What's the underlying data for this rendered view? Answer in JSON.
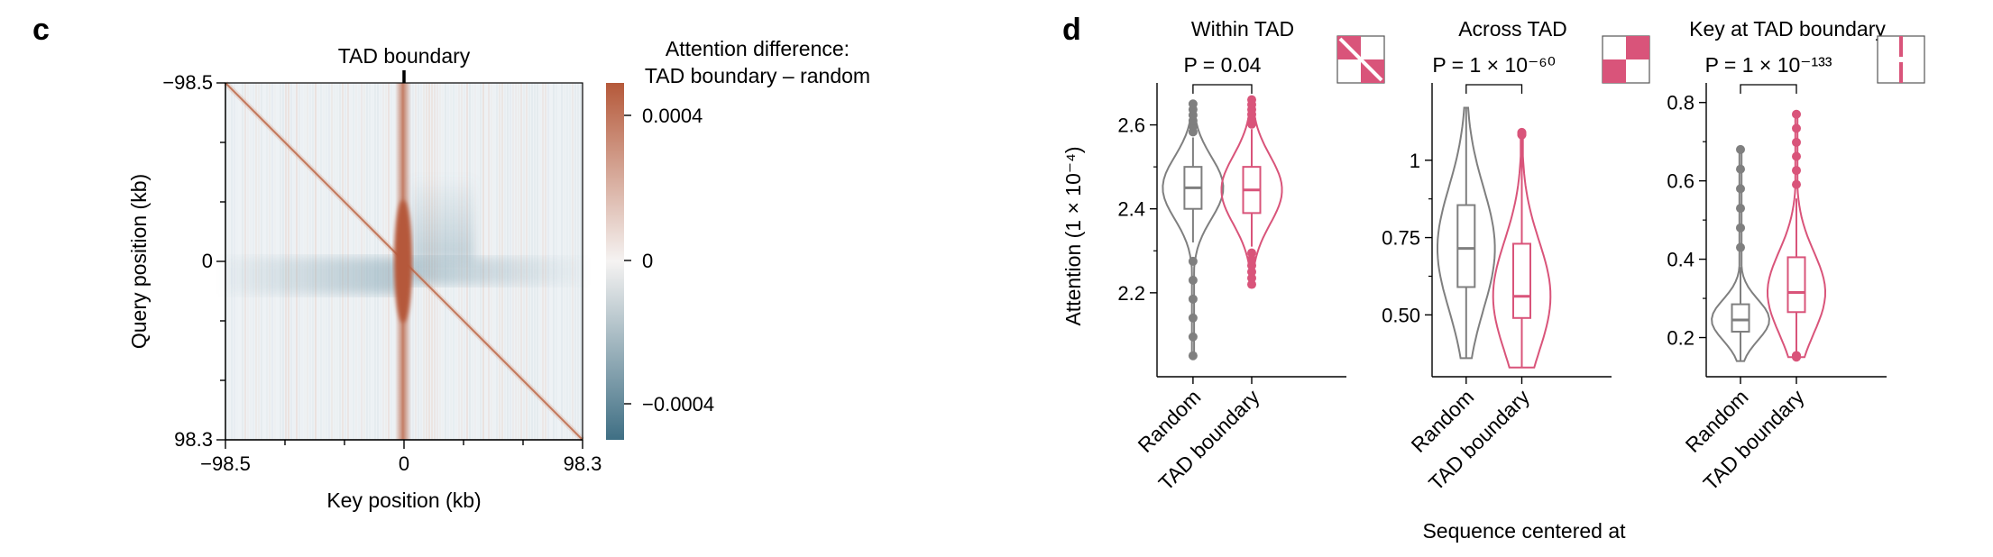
{
  "panel_c": {
    "letter": "c",
    "marker_label": "TAD boundary",
    "colorbar_title_line1": "Attention difference:",
    "colorbar_title_line2": "TAD boundary – random",
    "colorbar_ticks": [
      "0.0004",
      "0",
      "−0.0004"
    ],
    "colors": {
      "positive": "#b5593a",
      "neutral": "#f5f3f2",
      "negative": "#3f6f84"
    }
  },
  "panel_d": {
    "letter": "d",
    "xlabel": "Sequence centered at",
    "ylabel": "Attention (1 × 10⁻⁴)",
    "colors": {
      "random": "#7f7f7f",
      "tad": "#d9547a"
    }
  },
  "chart_data": [
    {
      "type": "heatmap",
      "xlabel": "Key position (kb)",
      "ylabel": "Query position (kb)",
      "x_tick_labels": [
        "−98.5",
        "0",
        "98.3"
      ],
      "y_tick_labels": [
        "−98.5",
        "0",
        "98.3"
      ],
      "xlim": [
        -98.5,
        98.3
      ],
      "ylim": [
        -98.5,
        98.3
      ],
      "colorbar_range": [
        -0.0006,
        0.0006
      ],
      "annotations": [
        "TAD boundary"
      ]
    },
    {
      "type": "violin",
      "title": "Within TAD",
      "p_value": "P = 0.04",
      "categories": [
        "Random",
        "TAD boundary"
      ],
      "ylim": [
        2.0,
        2.7
      ],
      "yticks": [
        2.2,
        2.4,
        2.6
      ],
      "y_tick_labels": [
        "2.2",
        "2.4",
        "2.6"
      ],
      "series": [
        {
          "name": "Random",
          "q1": 2.4,
          "median": 2.45,
          "q3": 2.5,
          "whisker_low": 2.32,
          "whisker_high": 2.57,
          "min": 2.05,
          "max": 2.65
        },
        {
          "name": "TAD boundary",
          "q1": 2.39,
          "median": 2.445,
          "q3": 2.5,
          "whisker_low": 2.31,
          "whisker_high": 2.59,
          "min": 2.22,
          "max": 2.66
        }
      ]
    },
    {
      "type": "violin",
      "title": "Across TAD",
      "p_value": "P = 1 × 10⁻⁶⁰",
      "categories": [
        "Random",
        "TAD boundary"
      ],
      "ylim": [
        0.3,
        1.25
      ],
      "yticks": [
        0.5,
        0.75,
        1.0
      ],
      "y_tick_labels": [
        "0.50",
        "0.75",
        "1"
      ],
      "series": [
        {
          "name": "Random",
          "q1": 0.59,
          "median": 0.715,
          "q3": 0.855,
          "whisker_low": 0.36,
          "whisker_high": 1.17,
          "min": 0.36,
          "max": 1.17
        },
        {
          "name": "TAD boundary",
          "q1": 0.49,
          "median": 0.56,
          "q3": 0.73,
          "whisker_low": 0.33,
          "whisker_high": 1.08,
          "min": 0.33,
          "max": 1.09
        }
      ]
    },
    {
      "type": "violin",
      "title": "Key at TAD boundary",
      "p_value": "P = 1 × 10⁻¹³³",
      "categories": [
        "Random",
        "TAD boundary"
      ],
      "ylim": [
        0.1,
        0.85
      ],
      "yticks": [
        0.2,
        0.4,
        0.6,
        0.8
      ],
      "y_tick_labels": [
        "0.2",
        "0.4",
        "0.6",
        "0.8"
      ],
      "series": [
        {
          "name": "Random",
          "q1": 0.215,
          "median": 0.245,
          "q3": 0.285,
          "whisker_low": 0.14,
          "whisker_high": 0.38,
          "min": 0.14,
          "max": 0.68
        },
        {
          "name": "TAD boundary",
          "q1": 0.265,
          "median": 0.315,
          "q3": 0.405,
          "whisker_low": 0.155,
          "whisker_high": 0.555,
          "min": 0.15,
          "max": 0.77
        }
      ]
    }
  ]
}
